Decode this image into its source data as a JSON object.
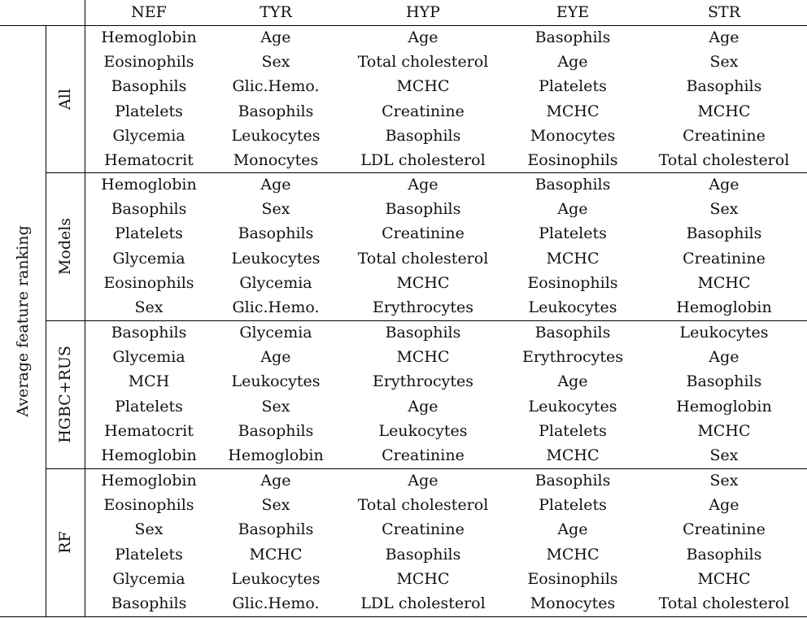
{
  "table": {
    "row_label": "Average feature ranking",
    "columns": [
      "NEF",
      "TYR",
      "HYP",
      "EYE",
      "STR"
    ],
    "groups": [
      {
        "name": "All",
        "rows": [
          [
            "Hemoglobin",
            "Age",
            "Age",
            "Basophils",
            "Age"
          ],
          [
            "Eosinophils",
            "Sex",
            "Total cholesterol",
            "Age",
            "Sex"
          ],
          [
            "Basophils",
            "Glic.Hemo.",
            "MCHC",
            "Platelets",
            "Basophils"
          ],
          [
            "Platelets",
            "Basophils",
            "Creatinine",
            "MCHC",
            "MCHC"
          ],
          [
            "Glycemia",
            "Leukocytes",
            "Basophils",
            "Monocytes",
            "Creatinine"
          ],
          [
            "Hematocrit",
            "Monocytes",
            "LDL cholesterol",
            "Eosinophils",
            "Total cholesterol"
          ]
        ]
      },
      {
        "name": "Models",
        "rows": [
          [
            "Hemoglobin",
            "Age",
            "Age",
            "Basophils",
            "Age"
          ],
          [
            "Basophils",
            "Sex",
            "Basophils",
            "Age",
            "Sex"
          ],
          [
            "Platelets",
            "Basophils",
            "Creatinine",
            "Platelets",
            "Basophils"
          ],
          [
            "Glycemia",
            "Leukocytes",
            "Total cholesterol",
            "MCHC",
            "Creatinine"
          ],
          [
            "Eosinophils",
            "Glycemia",
            "MCHC",
            "Eosinophils",
            "MCHC"
          ],
          [
            "Sex",
            "Glic.Hemo.",
            "Erythrocytes",
            "Leukocytes",
            "Hemoglobin"
          ]
        ]
      },
      {
        "name": "HGBC+RUS",
        "rows": [
          [
            "Basophils",
            "Glycemia",
            "Basophils",
            "Basophils",
            "Leukocytes"
          ],
          [
            "Glycemia",
            "Age",
            "MCHC",
            "Erythrocytes",
            "Age"
          ],
          [
            "MCH",
            "Leukocytes",
            "Erythrocytes",
            "Age",
            "Basophils"
          ],
          [
            "Platelets",
            "Sex",
            "Age",
            "Leukocytes",
            "Hemoglobin"
          ],
          [
            "Hematocrit",
            "Basophils",
            "Leukocytes",
            "Platelets",
            "MCHC"
          ],
          [
            "Hemoglobin",
            "Hemoglobin",
            "Creatinine",
            "MCHC",
            "Sex"
          ]
        ]
      },
      {
        "name": "RF",
        "rows": [
          [
            "Hemoglobin",
            "Age",
            "Age",
            "Basophils",
            "Sex"
          ],
          [
            "Eosinophils",
            "Sex",
            "Total cholesterol",
            "Platelets",
            "Age"
          ],
          [
            "Sex",
            "Basophils",
            "Creatinine",
            "Age",
            "Creatinine"
          ],
          [
            "Platelets",
            "MCHC",
            "Basophils",
            "MCHC",
            "Basophils"
          ],
          [
            "Glycemia",
            "Leukocytes",
            "MCHC",
            "Eosinophils",
            "MCHC"
          ],
          [
            "Basophils",
            "Glic.Hemo.",
            "LDL cholesterol",
            "Monocytes",
            "Total cholesterol"
          ]
        ]
      }
    ]
  }
}
